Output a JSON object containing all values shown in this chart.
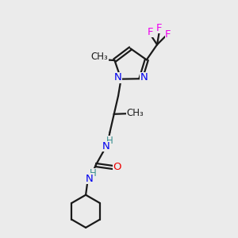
{
  "bg_color": "#ebebeb",
  "bond_color": "#1a1a1a",
  "N_color": "#0000ee",
  "O_color": "#ee0000",
  "F_color": "#ee00ee",
  "teal_color": "#3a9090",
  "figsize": [
    3.0,
    3.0
  ],
  "dpi": 100,
  "xlim": [
    0,
    10
  ],
  "ylim": [
    0,
    10
  ]
}
